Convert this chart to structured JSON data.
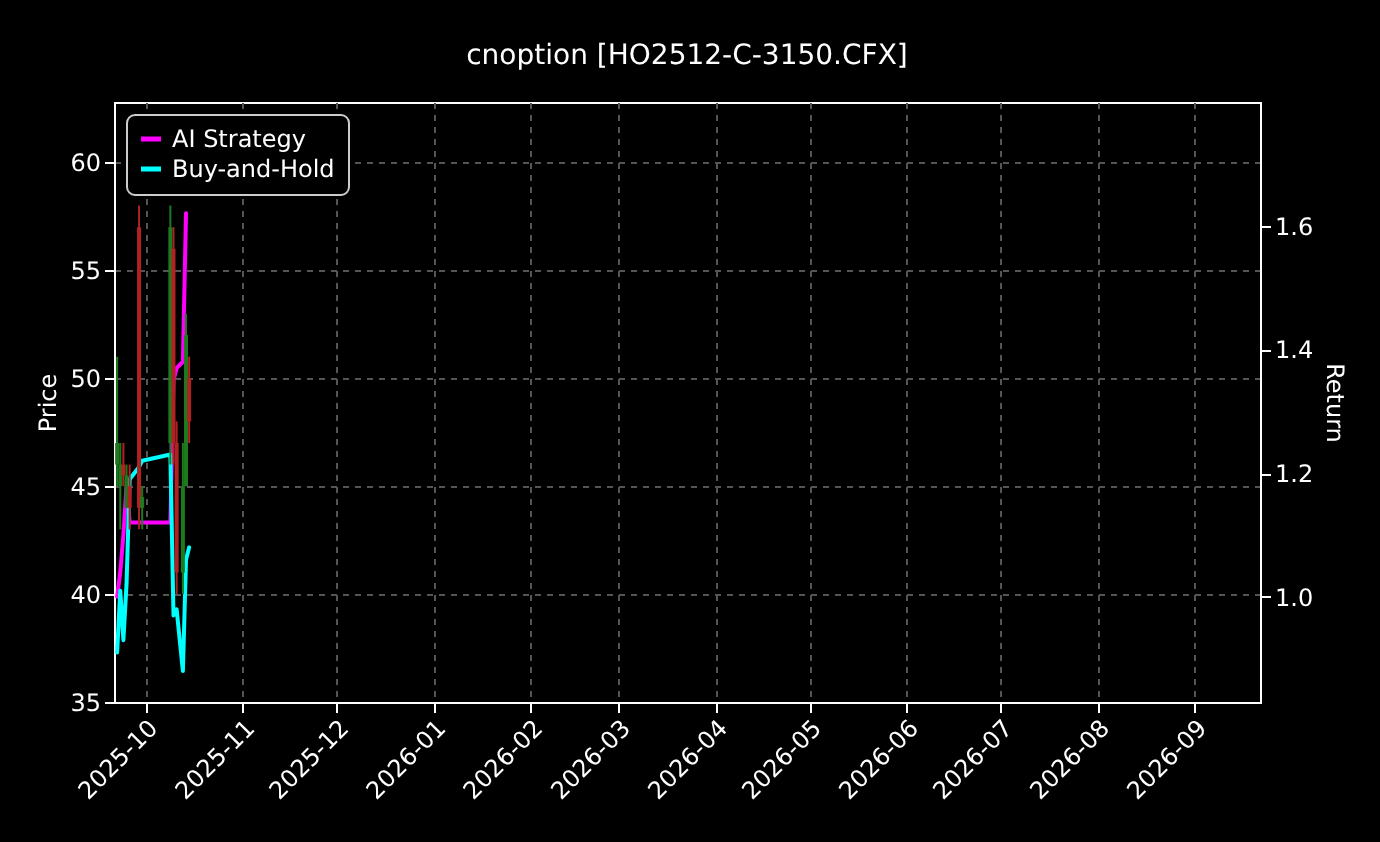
{
  "chart_data": {
    "type": "candlestick",
    "title": "cnoption [HO2512-C-3150.CFX]",
    "ylabel": "Price",
    "y2label": "Return",
    "x": [
      "2025-09-22",
      "2025-09-23",
      "2025-09-24",
      "2025-09-25",
      "2025-09-26",
      "2025-09-29",
      "2025-09-30",
      "2025-10-09",
      "2025-10-10",
      "2025-10-11",
      "2025-10-13",
      "2025-10-14",
      "2025-10-15"
    ],
    "ohlc": [
      [
        46,
        51,
        45,
        47
      ],
      [
        45,
        47,
        43,
        46
      ],
      [
        46,
        47,
        45,
        45.5
      ],
      [
        44,
        46,
        44,
        45.5
      ],
      [
        45,
        46,
        43,
        44
      ],
      [
        57,
        58,
        43,
        44
      ],
      [
        44,
        45,
        43,
        44.5
      ],
      [
        47,
        58,
        46,
        57
      ],
      [
        56,
        57,
        46,
        47
      ],
      [
        47,
        48,
        40,
        41
      ],
      [
        41,
        47,
        40,
        45
      ],
      [
        45,
        53,
        45,
        52
      ],
      [
        50,
        51,
        47,
        48
      ]
    ],
    "colors": [
      "#1f7a1f",
      "#1f7a1f",
      "#b22222",
      "#1f7a1f",
      "#b22222",
      "#b22222",
      "#1f7a1f",
      "#1f7a1f",
      "#b22222",
      "#b22222",
      "#1f7a1f",
      "#1f7a1f",
      "#b22222"
    ],
    "series": [
      {
        "name": "AI Strategy",
        "type": "line",
        "axis": "y2",
        "color": "#ff00ff",
        "values": [
          1.0,
          1.04,
          1.1,
          1.18,
          1.12,
          1.12,
          1.12,
          1.12,
          1.35,
          1.37,
          1.38,
          1.62,
          null
        ]
      },
      {
        "name": "Buy-and-Hold",
        "type": "line",
        "axis": "y2",
        "color": "#00ffff",
        "values": [
          0.91,
          1.01,
          0.93,
          1.02,
          1.19,
          1.21,
          1.22,
          1.23,
          0.97,
          0.98,
          0.88,
          1.06,
          1.08
        ]
      }
    ],
    "xlim": [
      "2025-09-21",
      "2026-09-22"
    ],
    "xticks": [
      {
        "value": "2025-10-01",
        "label": "2025-10"
      },
      {
        "value": "2025-11-01",
        "label": "2025-11"
      },
      {
        "value": "2025-12-01",
        "label": "2025-12"
      },
      {
        "value": "2026-01-01",
        "label": "2026-01"
      },
      {
        "value": "2026-02-01",
        "label": "2026-02"
      },
      {
        "value": "2026-03-01",
        "label": "2026-03"
      },
      {
        "value": "2026-04-01",
        "label": "2026-04"
      },
      {
        "value": "2026-05-01",
        "label": "2026-05"
      },
      {
        "value": "2026-06-01",
        "label": "2026-06"
      },
      {
        "value": "2026-07-01",
        "label": "2026-07"
      },
      {
        "value": "2026-08-01",
        "label": "2026-08"
      },
      {
        "value": "2026-09-01",
        "label": "2026-09"
      }
    ],
    "ylim": [
      35,
      62.8
    ],
    "yticks": [
      35,
      40,
      45,
      50,
      55,
      60
    ],
    "y2lim": [
      0.83,
      1.8
    ],
    "y2ticks": [
      {
        "value": 1,
        "label": "1.0"
      },
      1.2,
      1.4,
      1.6
    ],
    "grid": true,
    "legend": "top left"
  }
}
